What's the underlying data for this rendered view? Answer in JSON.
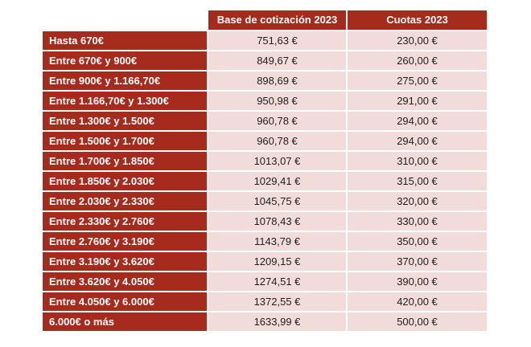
{
  "colors": {
    "header_red": "#a72b1d",
    "cell_pink": "#f1dcd9",
    "header_text": "#ffffff",
    "value_text": "#1f1f1f",
    "background": "#ffffff"
  },
  "table": {
    "headers": [
      "",
      "Base de cotización 2023",
      "Cuotas 2023"
    ],
    "rows": [
      {
        "label": "Hasta 670€",
        "base": "751,63 €",
        "cuota": "230,00 €"
      },
      {
        "label": "Entre 670€ y 900€",
        "base": "849,67 €",
        "cuota": "260,00 €"
      },
      {
        "label": "Entre 900€ y 1.166,70€",
        "base": "898,69 €",
        "cuota": "275,00 €"
      },
      {
        "label": "Entre 1.166,70€ y 1.300€",
        "base": "950,98 €",
        "cuota": "291,00 €"
      },
      {
        "label": "Entre 1.300€ y 1.500€",
        "base": "960,78 €",
        "cuota": "294,00 €"
      },
      {
        "label": "Entre 1.500€ y 1.700€",
        "base": "960,78 €",
        "cuota": "294,00 €"
      },
      {
        "label": "Entre 1.700€ y 1.850€",
        "base": "1013,07 €",
        "cuota": "310,00 €"
      },
      {
        "label": "Entre 1.850€ y 2.030€",
        "base": "1029,41 €",
        "cuota": "315,00 €"
      },
      {
        "label": "Entre 2.030€ y 2.330€",
        "base": "1045,75 €",
        "cuota": "320,00 €"
      },
      {
        "label": "Entre 2.330€ y 2.760€",
        "base": "1078,43 €",
        "cuota": "330,00 €"
      },
      {
        "label": "Entre 2.760€ y 3.190€",
        "base": "1143,79 €",
        "cuota": "350,00 €"
      },
      {
        "label": "Entre 3.190€ y 3.620€",
        "base": "1209,15 €",
        "cuota": "370,00 €"
      },
      {
        "label": "Entre 3.620€ y 4.050€",
        "base": "1274,51 €",
        "cuota": "390,00 €"
      },
      {
        "label": "Entre 4.050€ y 6.000€",
        "base": "1372,55 €",
        "cuota": "420,00 €"
      },
      {
        "label": "6.000€ o más",
        "base": "1633,99 €",
        "cuota": "500,00 €"
      }
    ]
  },
  "chart_data": {
    "type": "table",
    "title": "",
    "columns": [
      "Base de cotización 2023",
      "Cuotas 2023"
    ],
    "row_labels": [
      "Hasta 670€",
      "Entre 670€ y 900€",
      "Entre 900€ y 1.166,70€",
      "Entre 1.166,70€ y 1.300€",
      "Entre 1.300€ y 1.500€",
      "Entre 1.500€ y 1.700€",
      "Entre 1.700€ y 1.850€",
      "Entre 1.850€ y 2.030€",
      "Entre 2.030€ y 2.330€",
      "Entre 2.330€ y 2.760€",
      "Entre 2.760€ y 3.190€",
      "Entre 3.190€ y 3.620€",
      "Entre 3.620€ y 4.050€",
      "Entre 4.050€ y 6.000€",
      "6.000€ o más"
    ],
    "series": [
      {
        "name": "Base de cotización 2023",
        "values": [
          751.63,
          849.67,
          898.69,
          950.98,
          960.78,
          960.78,
          1013.07,
          1029.41,
          1045.75,
          1078.43,
          1143.79,
          1209.15,
          1274.51,
          1372.55,
          1633.99
        ]
      },
      {
        "name": "Cuotas 2023",
        "values": [
          230.0,
          260.0,
          275.0,
          291.0,
          294.0,
          294.0,
          310.0,
          315.0,
          320.0,
          330.0,
          350.0,
          370.0,
          390.0,
          420.0,
          500.0
        ]
      }
    ],
    "units": "EUR",
    "notes": "grid shown as 2px white gaps between cells"
  }
}
